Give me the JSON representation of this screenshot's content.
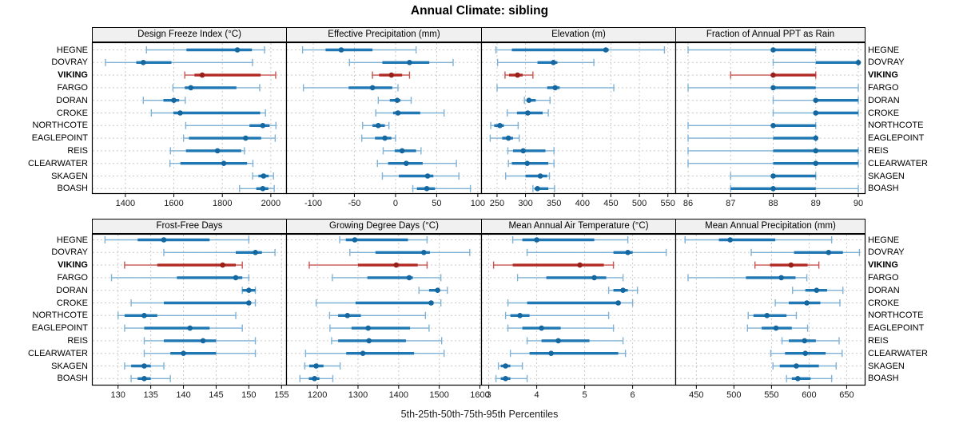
{
  "title": "Annual Climate: sibling",
  "caption": "5th-25th-50th-75th-95th Percentiles",
  "stations": [
    "HEGNE",
    "DOVRAY",
    "VIKING",
    "FARGO",
    "DORAN",
    "CROKE",
    "NORTHCOTE",
    "EAGLEPOINT",
    "REIS",
    "CLEARWATER",
    "SKAGEN",
    "BOASH"
  ],
  "highlight_station": "VIKING",
  "colors": {
    "blue_range": "#7fb2d6",
    "blue_box": "#1f77b4",
    "blue_dot": "#15679f",
    "red_range": "#c75450",
    "red_box": "#b22823",
    "red_dot": "#98201a",
    "grid": "#c9c9c9",
    "header_bg": "#f0f0f0",
    "border": "#000000"
  },
  "chart_data": [
    {
      "type": "dot-interval",
      "title": "Design Freeze Index (°C)",
      "row": "top",
      "xlim": [
        1262,
        2063
      ],
      "ticks": [
        1400,
        1600,
        1800,
        2000
      ],
      "percentiles": [
        5,
        25,
        50,
        75,
        95
      ],
      "values": [
        [
          1487,
          1652,
          1862,
          1922,
          1974
        ],
        [
          1318,
          1445,
          1474,
          1590,
          1924
        ],
        [
          1645,
          1685,
          1717,
          1958,
          2020
        ],
        [
          1596,
          1645,
          1670,
          1858,
          1954
        ],
        [
          1474,
          1557,
          1600,
          1622,
          1647
        ],
        [
          1507,
          1598,
          1626,
          1956,
          1978
        ],
        [
          1649,
          1912,
          1967,
          1995,
          2021
        ],
        [
          1640,
          1662,
          1896,
          1960,
          2018
        ],
        [
          1586,
          1650,
          1780,
          1878,
          1891
        ],
        [
          1584,
          1627,
          1806,
          1902,
          1926
        ],
        [
          1925,
          1949,
          1970,
          1991,
          2011
        ],
        [
          1871,
          1940,
          1967,
          1990,
          2014
        ]
      ]
    },
    {
      "type": "dot-interval",
      "title": "Effective Precipitation (mm)",
      "row": "top",
      "xlim": [
        -133,
        104
      ],
      "ticks": [
        -100,
        -50,
        0,
        50,
        100
      ],
      "percentiles": [
        5,
        25,
        50,
        75,
        95
      ],
      "values": [
        [
          -113,
          -85,
          -66,
          -28,
          25
        ],
        [
          -56,
          -16,
          17,
          41,
          70
        ],
        [
          -28,
          -20,
          -5,
          8,
          17
        ],
        [
          -112,
          -57,
          -28,
          -4,
          3
        ],
        [
          -21,
          -7,
          2,
          6,
          19
        ],
        [
          -24,
          -3,
          3,
          30,
          59
        ],
        [
          -40,
          -28,
          -21,
          -13,
          -8
        ],
        [
          -41,
          -25,
          -13,
          -5,
          0
        ],
        [
          -15,
          -1,
          8,
          25,
          31
        ],
        [
          -22,
          -9,
          13,
          33,
          74
        ],
        [
          -16,
          4,
          39,
          46,
          77
        ],
        [
          21,
          26,
          38,
          48,
          91
        ]
      ]
    },
    {
      "type": "dot-interval",
      "title": "Elevation (m)",
      "row": "top",
      "xlim": [
        222,
        563
      ],
      "ticks": [
        250,
        300,
        350,
        400,
        450,
        500,
        550
      ],
      "percentiles": [
        5,
        25,
        50,
        75,
        95
      ],
      "values": [
        [
          248,
          276,
          441,
          446,
          544
        ],
        [
          251,
          321,
          349,
          356,
          420
        ],
        [
          264,
          271,
          286,
          295,
          313
        ],
        [
          250,
          338,
          352,
          360,
          455
        ],
        [
          298,
          302,
          306,
          318,
          343
        ],
        [
          268,
          285,
          304,
          330,
          340
        ],
        [
          239,
          245,
          255,
          262,
          287
        ],
        [
          238,
          259,
          270,
          278,
          289
        ],
        [
          269,
          278,
          296,
          335,
          350
        ],
        [
          270,
          276,
          303,
          340,
          350
        ],
        [
          265,
          300,
          326,
          338,
          342
        ],
        [
          313,
          316,
          321,
          340,
          351
        ]
      ]
    },
    {
      "type": "dot-interval",
      "title": "Fraction of Annual PPT as Rain",
      "row": "top",
      "xlim": [
        85.7,
        90.15
      ],
      "ticks": [
        86,
        87,
        88,
        89,
        90
      ],
      "percentiles": [
        5,
        25,
        50,
        75,
        95
      ],
      "values": [
        [
          86,
          88,
          88,
          89,
          89
        ],
        [
          88,
          89,
          90,
          90,
          90
        ],
        [
          87,
          88,
          88,
          89,
          89
        ],
        [
          86,
          88,
          88,
          89,
          90
        ],
        [
          88,
          89,
          89,
          90,
          90
        ],
        [
          88,
          89,
          89,
          90,
          90
        ],
        [
          86,
          88,
          88,
          89,
          89
        ],
        [
          86,
          88,
          89,
          89,
          89
        ],
        [
          86,
          88,
          89,
          90,
          90
        ],
        [
          86,
          88,
          89,
          90,
          90
        ],
        [
          87,
          88,
          88,
          89,
          89
        ],
        [
          87,
          87,
          88,
          89,
          90
        ]
      ]
    },
    {
      "type": "dot-interval",
      "title": "Frost-Free Days",
      "row": "bottom",
      "xlim": [
        126,
        155.7
      ],
      "ticks": [
        130,
        135,
        140,
        145,
        150,
        155
      ],
      "percentiles": [
        5,
        25,
        50,
        75,
        95
      ],
      "values": [
        [
          128,
          133,
          137,
          144,
          150
        ],
        [
          137,
          148,
          151,
          152,
          154
        ],
        [
          131,
          136,
          146,
          148,
          149
        ],
        [
          129,
          139,
          148,
          149,
          150
        ],
        [
          149,
          149,
          150,
          151,
          151
        ],
        [
          132,
          137,
          150,
          150,
          151
        ],
        [
          130,
          131,
          134,
          136,
          148
        ],
        [
          131,
          134,
          141,
          144,
          149
        ],
        [
          134,
          137,
          143,
          145,
          151
        ],
        [
          134,
          138,
          140,
          145,
          151
        ],
        [
          131,
          132,
          134,
          135,
          137
        ],
        [
          132,
          133,
          134,
          135,
          138
        ]
      ]
    },
    {
      "type": "dot-interval",
      "title": "Growing Degree Days (°C)",
      "row": "bottom",
      "xlim": [
        1123,
        1603
      ],
      "ticks": [
        1200,
        1300,
        1400,
        1500,
        1600
      ],
      "percentiles": [
        5,
        25,
        50,
        75,
        95
      ],
      "values": [
        [
          1255,
          1270,
          1292,
          1423,
          1470
        ],
        [
          1280,
          1343,
          1462,
          1477,
          1575
        ],
        [
          1180,
          1300,
          1394,
          1447,
          1470
        ],
        [
          1237,
          1323,
          1426,
          1435,
          1504
        ],
        [
          1450,
          1475,
          1496,
          1502,
          1520
        ],
        [
          1197,
          1294,
          1480,
          1486,
          1504
        ],
        [
          1230,
          1251,
          1274,
          1307,
          1466
        ],
        [
          1231,
          1284,
          1325,
          1428,
          1475
        ],
        [
          1235,
          1251,
          1327,
          1418,
          1506
        ],
        [
          1171,
          1271,
          1312,
          1438,
          1512
        ],
        [
          1169,
          1180,
          1197,
          1215,
          1256
        ],
        [
          1157,
          1179,
          1193,
          1205,
          1238
        ]
      ]
    },
    {
      "type": "dot-interval",
      "title": "Mean Annual Air Temperature (°C)",
      "row": "bottom",
      "xlim": [
        2.84,
        6.89
      ],
      "ticks": [
        3,
        4,
        5,
        6
      ],
      "percentiles": [
        5,
        25,
        50,
        75,
        95
      ],
      "values": [
        [
          3.5,
          3.7,
          4.0,
          5.2,
          5.9
        ],
        [
          3.8,
          5.6,
          5.9,
          6.0,
          6.7
        ],
        [
          3.1,
          3.5,
          4.9,
          5.4,
          5.6
        ],
        [
          3.6,
          4.2,
          5.2,
          5.45,
          5.8
        ],
        [
          5.5,
          5.6,
          5.8,
          5.9,
          6.1
        ],
        [
          3.4,
          3.8,
          5.7,
          5.75,
          6.0
        ],
        [
          3.35,
          3.45,
          3.65,
          3.85,
          5.5
        ],
        [
          3.4,
          3.7,
          4.1,
          4.5,
          5.6
        ],
        [
          3.8,
          4.1,
          4.45,
          5.1,
          5.8
        ],
        [
          3.45,
          3.85,
          4.3,
          5.7,
          5.85
        ],
        [
          3.2,
          3.25,
          3.35,
          3.45,
          3.7
        ],
        [
          3.15,
          3.25,
          3.35,
          3.45,
          3.8
        ]
      ]
    },
    {
      "type": "dot-interval",
      "title": "Mean Annual Precipitation (mm)",
      "row": "bottom",
      "xlim": [
        422,
        674
      ],
      "ticks": [
        450,
        500,
        550,
        600,
        650
      ],
      "percentiles": [
        5,
        25,
        50,
        75,
        95
      ],
      "values": [
        [
          435,
          480,
          495,
          555,
          630
        ],
        [
          523,
          580,
          626,
          645,
          667
        ],
        [
          528,
          548,
          576,
          598,
          613
        ],
        [
          439,
          516,
          563,
          582,
          597
        ],
        [
          578,
          595,
          610,
          624,
          645
        ],
        [
          555,
          573,
          597,
          615,
          641
        ],
        [
          519,
          526,
          544,
          570,
          583
        ],
        [
          518,
          537,
          556,
          577,
          598
        ],
        [
          564,
          573,
          594,
          609,
          640
        ],
        [
          549,
          568,
          595,
          622,
          644
        ],
        [
          552,
          561,
          583,
          613,
          636
        ],
        [
          570,
          577,
          585,
          602,
          630
        ]
      ]
    }
  ]
}
